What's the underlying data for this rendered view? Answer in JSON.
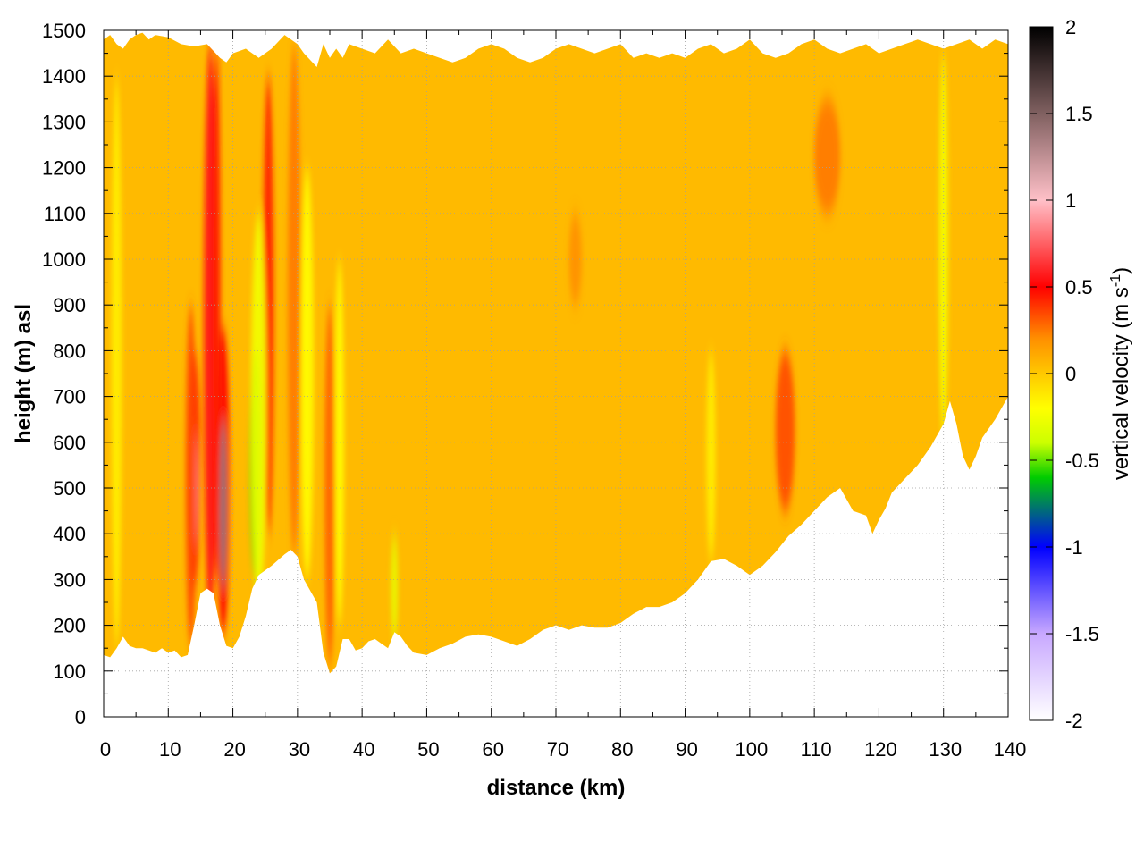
{
  "chart_data": {
    "type": "heatmap",
    "title": "",
    "xlabel": "distance (km)",
    "ylabel": "height (m) asl",
    "xlim": [
      0,
      140
    ],
    "ylim": [
      0,
      1500
    ],
    "x_ticks": [
      "0",
      "10",
      "20",
      "30",
      "40",
      "50",
      "60",
      "70",
      "80",
      "90",
      "100",
      "110",
      "120",
      "130",
      "140"
    ],
    "y_ticks": [
      "0",
      "100",
      "200",
      "300",
      "400",
      "500",
      "600",
      "700",
      "800",
      "900",
      "1000",
      "1100",
      "1200",
      "1300",
      "1400",
      "1500"
    ],
    "grid": true,
    "colorbar": {
      "label_main": "vertical velocity (m s",
      "label_sup": "-1",
      "label_close": ")",
      "range": [
        -2,
        2
      ],
      "ticks": [
        "-2",
        "-1.5",
        "-1",
        "-0.5",
        "0",
        "0.5",
        "1",
        "1.5",
        "2"
      ],
      "stops": [
        {
          "v": -2.0,
          "color": "#ffffff"
        },
        {
          "v": -1.5,
          "color": "#c8a8ff"
        },
        {
          "v": -1.0,
          "color": "#0000ff"
        },
        {
          "v": -0.6,
          "color": "#00cc00"
        },
        {
          "v": -0.4,
          "color": "#ccff00"
        },
        {
          "v": -0.2,
          "color": "#ffff00"
        },
        {
          "v": 0.0,
          "color": "#ffc800"
        },
        {
          "v": 0.2,
          "color": "#ff9000"
        },
        {
          "v": 0.5,
          "color": "#ff0000"
        },
        {
          "v": 1.0,
          "color": "#ffc0c8"
        },
        {
          "v": 1.5,
          "color": "#806060"
        },
        {
          "v": 2.0,
          "color": "#000000"
        }
      ]
    },
    "data_bottom": [
      [
        0,
        135
      ],
      [
        1,
        130
      ],
      [
        2,
        150
      ],
      [
        3,
        175
      ],
      [
        4,
        155
      ],
      [
        5,
        150
      ],
      [
        6,
        150
      ],
      [
        7,
        145
      ],
      [
        8,
        140
      ],
      [
        9,
        150
      ],
      [
        10,
        140
      ],
      [
        11,
        145
      ],
      [
        12,
        130
      ],
      [
        13,
        135
      ],
      [
        14,
        200
      ],
      [
        15,
        270
      ],
      [
        16,
        280
      ],
      [
        17,
        270
      ],
      [
        18,
        200
      ],
      [
        19,
        155
      ],
      [
        20,
        150
      ],
      [
        21,
        175
      ],
      [
        22,
        220
      ],
      [
        23,
        280
      ],
      [
        24,
        310
      ],
      [
        26,
        330
      ],
      [
        28,
        355
      ],
      [
        29,
        365
      ],
      [
        30,
        350
      ],
      [
        31,
        300
      ],
      [
        33,
        250
      ],
      [
        34,
        140
      ],
      [
        35,
        95
      ],
      [
        36,
        110
      ],
      [
        37,
        170
      ],
      [
        38,
        170
      ],
      [
        39,
        145
      ],
      [
        40,
        150
      ],
      [
        41,
        165
      ],
      [
        42,
        170
      ],
      [
        43,
        160
      ],
      [
        44,
        150
      ],
      [
        45,
        185
      ],
      [
        46,
        175
      ],
      [
        47,
        155
      ],
      [
        48,
        140
      ],
      [
        50,
        135
      ],
      [
        52,
        150
      ],
      [
        54,
        160
      ],
      [
        56,
        175
      ],
      [
        58,
        180
      ],
      [
        60,
        175
      ],
      [
        62,
        165
      ],
      [
        64,
        155
      ],
      [
        66,
        170
      ],
      [
        68,
        190
      ],
      [
        70,
        200
      ],
      [
        72,
        190
      ],
      [
        74,
        200
      ],
      [
        76,
        195
      ],
      [
        78,
        195
      ],
      [
        80,
        205
      ],
      [
        82,
        225
      ],
      [
        84,
        240
      ],
      [
        86,
        240
      ],
      [
        88,
        250
      ],
      [
        90,
        270
      ],
      [
        92,
        300
      ],
      [
        94,
        340
      ],
      [
        96,
        345
      ],
      [
        98,
        330
      ],
      [
        100,
        310
      ],
      [
        102,
        330
      ],
      [
        104,
        360
      ],
      [
        106,
        395
      ],
      [
        108,
        420
      ],
      [
        110,
        450
      ],
      [
        112,
        480
      ],
      [
        114,
        500
      ],
      [
        116,
        450
      ],
      [
        118,
        440
      ],
      [
        119,
        400
      ],
      [
        120,
        430
      ],
      [
        121,
        455
      ],
      [
        122,
        490
      ],
      [
        124,
        520
      ],
      [
        126,
        550
      ],
      [
        128,
        590
      ],
      [
        130,
        640
      ],
      [
        131,
        690
      ],
      [
        132,
        640
      ],
      [
        133,
        570
      ],
      [
        134,
        540
      ],
      [
        135,
        570
      ],
      [
        136,
        610
      ],
      [
        138,
        650
      ],
      [
        140,
        700
      ]
    ],
    "data_top": [
      [
        0,
        1480
      ],
      [
        1,
        1490
      ],
      [
        2,
        1470
      ],
      [
        3,
        1460
      ],
      [
        4,
        1480
      ],
      [
        5,
        1490
      ],
      [
        6,
        1495
      ],
      [
        7,
        1480
      ],
      [
        8,
        1490
      ],
      [
        10,
        1485
      ],
      [
        12,
        1470
      ],
      [
        14,
        1465
      ],
      [
        16,
        1470
      ],
      [
        18,
        1440
      ],
      [
        19,
        1430
      ],
      [
        20,
        1450
      ],
      [
        22,
        1460
      ],
      [
        24,
        1440
      ],
      [
        26,
        1460
      ],
      [
        28,
        1490
      ],
      [
        30,
        1470
      ],
      [
        31,
        1450
      ],
      [
        33,
        1420
      ],
      [
        34,
        1470
      ],
      [
        35,
        1440
      ],
      [
        36,
        1460
      ],
      [
        37,
        1440
      ],
      [
        38,
        1470
      ],
      [
        40,
        1460
      ],
      [
        42,
        1450
      ],
      [
        44,
        1480
      ],
      [
        46,
        1450
      ],
      [
        48,
        1460
      ],
      [
        50,
        1450
      ],
      [
        52,
        1440
      ],
      [
        54,
        1430
      ],
      [
        56,
        1440
      ],
      [
        58,
        1460
      ],
      [
        60,
        1470
      ],
      [
        62,
        1460
      ],
      [
        64,
        1440
      ],
      [
        66,
        1430
      ],
      [
        68,
        1440
      ],
      [
        70,
        1460
      ],
      [
        72,
        1470
      ],
      [
        74,
        1460
      ],
      [
        76,
        1450
      ],
      [
        78,
        1460
      ],
      [
        80,
        1470
      ],
      [
        82,
        1440
      ],
      [
        84,
        1450
      ],
      [
        86,
        1440
      ],
      [
        88,
        1450
      ],
      [
        90,
        1440
      ],
      [
        92,
        1460
      ],
      [
        94,
        1470
      ],
      [
        96,
        1450
      ],
      [
        98,
        1460
      ],
      [
        100,
        1480
      ],
      [
        102,
        1450
      ],
      [
        104,
        1440
      ],
      [
        106,
        1450
      ],
      [
        108,
        1470
      ],
      [
        110,
        1480
      ],
      [
        112,
        1460
      ],
      [
        114,
        1450
      ],
      [
        116,
        1460
      ],
      [
        118,
        1470
      ],
      [
        120,
        1450
      ],
      [
        122,
        1460
      ],
      [
        124,
        1470
      ],
      [
        126,
        1480
      ],
      [
        128,
        1470
      ],
      [
        130,
        1460
      ],
      [
        132,
        1470
      ],
      [
        134,
        1480
      ],
      [
        136,
        1460
      ],
      [
        138,
        1480
      ],
      [
        140,
        1470
      ]
    ],
    "features": [
      {
        "x": 14,
        "w": 0.9,
        "y0": 280,
        "y1": 800,
        "v": 0.9,
        "kind": "core"
      },
      {
        "x": 18.5,
        "w": 1.0,
        "y0": 180,
        "y1": 850,
        "v": 1.4,
        "kind": "core"
      },
      {
        "x": 16.5,
        "w": 1.0,
        "y0": 200,
        "y1": 1470,
        "v": 0.55,
        "kind": "plume"
      },
      {
        "x": 17.5,
        "w": 0.6,
        "y0": 300,
        "y1": 1470,
        "v": 0.45,
        "kind": "plume"
      },
      {
        "x": 13.5,
        "w": 0.8,
        "y0": 150,
        "y1": 900,
        "v": 0.35,
        "kind": "plume"
      },
      {
        "x": 25.5,
        "w": 0.8,
        "y0": 400,
        "y1": 1400,
        "v": 0.45,
        "kind": "plume"
      },
      {
        "x": 23.5,
        "w": 0.9,
        "y0": 300,
        "y1": 800,
        "v": -0.55,
        "kind": "down"
      },
      {
        "x": 24,
        "w": 1.2,
        "y0": 250,
        "y1": 1100,
        "v": -0.25,
        "kind": "down"
      },
      {
        "x": 29.5,
        "w": 1.0,
        "y0": 350,
        "y1": 1470,
        "v": 0.25,
        "kind": "plume"
      },
      {
        "x": 31.5,
        "w": 1.0,
        "y0": 300,
        "y1": 1200,
        "v": -0.2,
        "kind": "down"
      },
      {
        "x": 35,
        "w": 0.8,
        "y0": 110,
        "y1": 900,
        "v": 0.3,
        "kind": "plume"
      },
      {
        "x": 36.5,
        "w": 0.7,
        "y0": 200,
        "y1": 1000,
        "v": -0.2,
        "kind": "down"
      },
      {
        "x": 45,
        "w": 0.5,
        "y0": 160,
        "y1": 400,
        "v": -0.3,
        "kind": "down"
      },
      {
        "x": 73,
        "w": 1.0,
        "y0": 900,
        "y1": 1100,
        "v": 0.2,
        "kind": "plume"
      },
      {
        "x": 105.5,
        "w": 1.5,
        "y0": 450,
        "y1": 800,
        "v": 0.35,
        "kind": "plume"
      },
      {
        "x": 112,
        "w": 2.0,
        "y0": 1100,
        "y1": 1350,
        "v": 0.25,
        "kind": "plume"
      },
      {
        "x": 130,
        "w": 0.7,
        "y0": 600,
        "y1": 1450,
        "v": -0.25,
        "kind": "down"
      },
      {
        "x": 2,
        "w": 0.8,
        "y0": 150,
        "y1": 1400,
        "v": -0.15,
        "kind": "down"
      },
      {
        "x": 94,
        "w": 0.7,
        "y0": 340,
        "y1": 800,
        "v": -0.15,
        "kind": "down"
      }
    ]
  }
}
